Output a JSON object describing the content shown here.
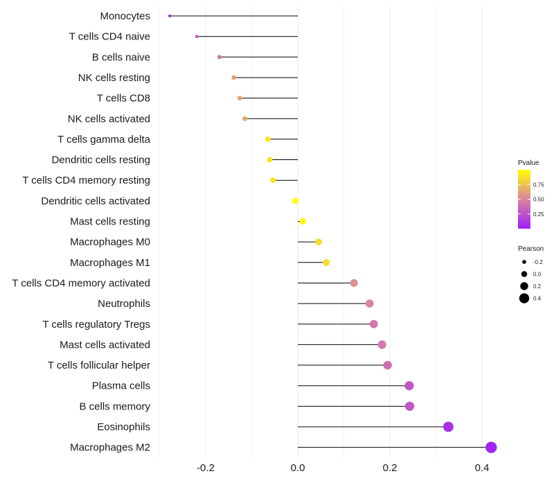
{
  "chart_data": {
    "type": "lollipop",
    "categories": [
      "Monocytes",
      "T cells CD4 naive",
      "B cells naive",
      "NK cells resting",
      "T cells CD8",
      "NK cells activated",
      "T cells gamma delta",
      "Dendritic cells resting",
      "T cells CD4 memory resting",
      "Dendritic cells activated",
      "Mast cells resting",
      "Macrophages M0",
      "Macrophages M1",
      "T cells CD4 memory activated",
      "Neutrophils",
      "T cells regulatory  Tregs ",
      "Mast cells activated",
      "T cells follicular helper",
      "Plasma cells",
      "B cells memory",
      "Eosinophils",
      "Macrophages M2"
    ],
    "values": [
      -0.278,
      -0.219,
      -0.17,
      -0.139,
      -0.126,
      -0.115,
      -0.065,
      -0.061,
      -0.054,
      -0.005,
      0.011,
      0.045,
      0.062,
      0.122,
      0.156,
      0.165,
      0.183,
      0.195,
      0.242,
      0.243,
      0.327,
      0.42
    ],
    "pvalues": [
      0.03,
      0.32,
      0.42,
      0.62,
      0.62,
      0.66,
      0.9,
      0.9,
      0.9,
      0.99,
      0.99,
      0.86,
      0.86,
      0.55,
      0.5,
      0.44,
      0.44,
      0.4,
      0.28,
      0.28,
      0.08,
      0.02
    ],
    "xlabel": "",
    "ylabel": "",
    "xlim": [
      -0.3,
      0.44
    ],
    "x_ticks": [
      "-0.2",
      "0.0",
      "0.2",
      "0.4"
    ],
    "x_tick_values": [
      -0.2,
      0.0,
      0.2,
      0.4
    ],
    "legend": {
      "pvalue": {
        "title": "Pvalue",
        "ticks": [
          "0.75",
          "0.50",
          "0.25"
        ],
        "tick_values": [
          0.75,
          0.5,
          0.25
        ],
        "range": [
          0.0,
          1.0
        ],
        "color_low": "#9f1ff5",
        "color_mid": "#d984a0",
        "color_high": "#ffff00"
      },
      "pearson": {
        "title": "Pearson",
        "labels": [
          "-0.2",
          "0.0",
          "0.2",
          "0.4"
        ],
        "values": [
          -0.2,
          0.0,
          0.2,
          0.4
        ]
      }
    },
    "grid": true
  }
}
